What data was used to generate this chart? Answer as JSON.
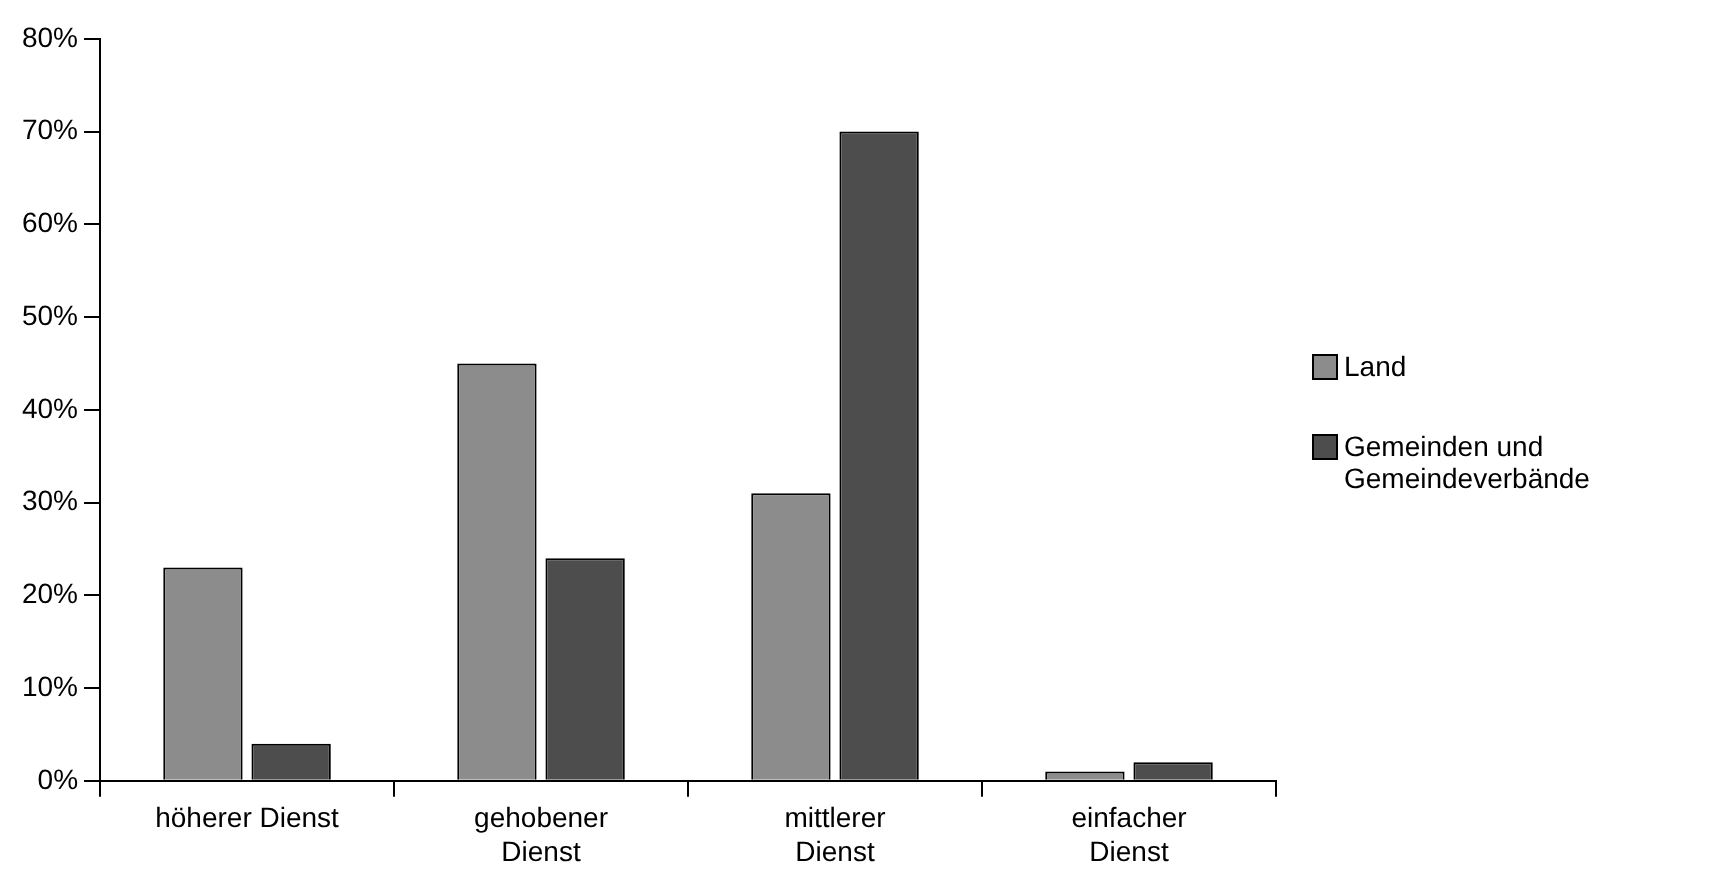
{
  "chart_data": {
    "type": "bar",
    "categories": [
      "höherer Dienst",
      "gehobener Dienst",
      "mittlerer Dienst",
      "einfacher Dienst"
    ],
    "series": [
      {
        "name": "Land",
        "color": "#8c8c8c",
        "values": [
          23,
          45,
          31,
          1
        ]
      },
      {
        "name": "Gemeinden und Gemeindeverbände",
        "color": "#4d4d4d",
        "values": [
          4,
          24,
          70,
          2
        ]
      }
    ],
    "ylim": [
      0,
      80
    ],
    "yticks": [
      {
        "value": 0,
        "label": "0%"
      },
      {
        "value": 10,
        "label": "10%"
      },
      {
        "value": 20,
        "label": "20%"
      },
      {
        "value": 30,
        "label": "30%"
      },
      {
        "value": 40,
        "label": "40%"
      },
      {
        "value": 50,
        "label": "50%"
      },
      {
        "value": 60,
        "label": "60%"
      },
      {
        "value": 70,
        "label": "70%"
      },
      {
        "value": 80,
        "label": "80%"
      }
    ],
    "grid": false,
    "legend": "right"
  }
}
